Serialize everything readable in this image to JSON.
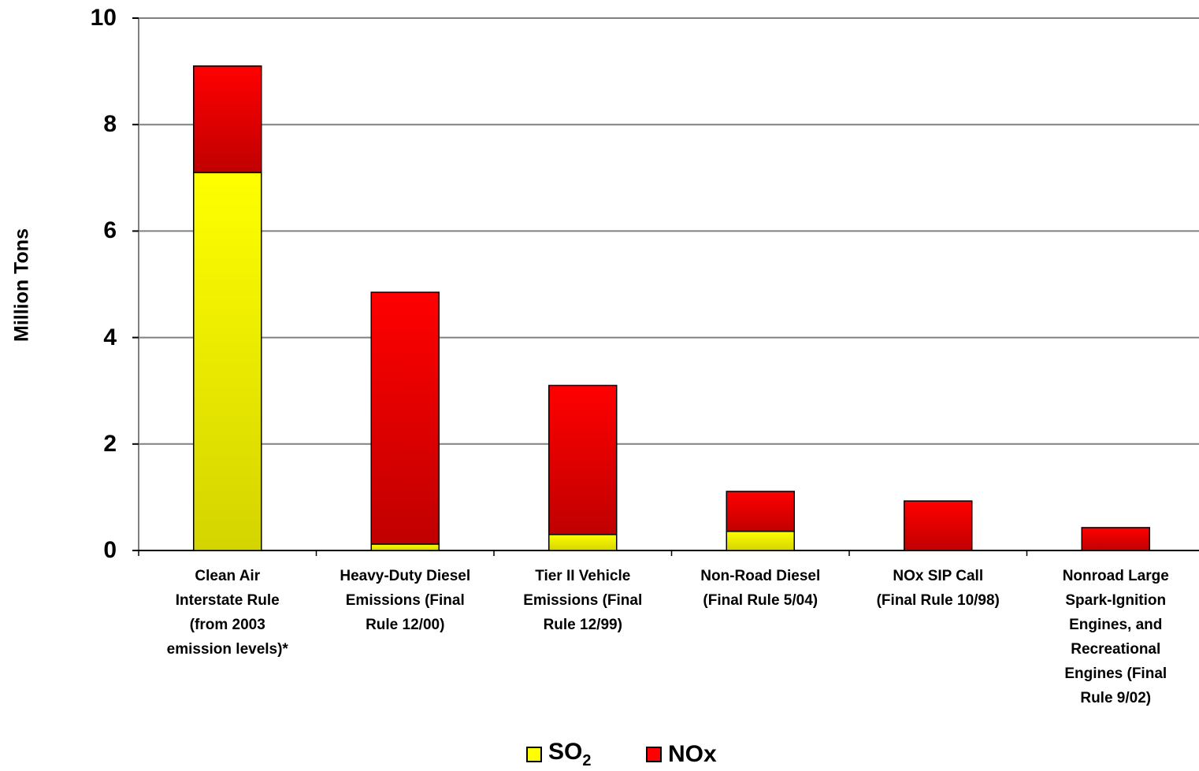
{
  "chart_data": {
    "type": "bar",
    "stacked": true,
    "categories": [
      "Clean Air Interstate Rule (from 2003 emission levels)*",
      "Heavy-Duty Diesel Emissions (Final Rule 12/00)",
      "Tier II Vehicle Emissions (Final Rule 12/99)",
      "Non-Road Diesel (Final Rule 5/04)",
      "NOx SIP Call (Final Rule 10/98)",
      "Nonroad Large Spark-Ignition Engines, and Recreational Engines (Final Rule 9/02)"
    ],
    "category_lines": [
      "Clean Air\nInterstate Rule\n(from 2003\nemission levels)*",
      "Heavy-Duty Diesel\nEmissions (Final\nRule 12/00)",
      "Tier II Vehicle\nEmissions (Final\nRule 12/99)",
      "Non-Road Diesel\n(Final Rule 5/04)",
      "NOx SIP Call\n(Final Rule 10/98)",
      "Nonroad Large\nSpark-Ignition\nEngines, and\nRecreational\nEngines (Final\nRule 9/02)"
    ],
    "series": [
      {
        "name": "SO2",
        "values": [
          7.1,
          0.12,
          0.3,
          0.36,
          0.0,
          0.0
        ],
        "color": "#ffff00",
        "color_dark": "#d4d400"
      },
      {
        "name": "NOx",
        "values": [
          2.0,
          4.73,
          2.8,
          0.75,
          0.93,
          0.43
        ],
        "color": "#ff0000",
        "color_dark": "#c00000"
      }
    ],
    "ylabel": "Million Tons",
    "xlabel": "",
    "title": "",
    "ylim": [
      0,
      10
    ],
    "yticks": [
      "0",
      "2",
      "4",
      "6",
      "8",
      "10"
    ],
    "grid": true,
    "legend_position": "bottom-center",
    "legend": {
      "so2_main": "SO",
      "so2_sub": "2",
      "nox": "NOx"
    }
  }
}
